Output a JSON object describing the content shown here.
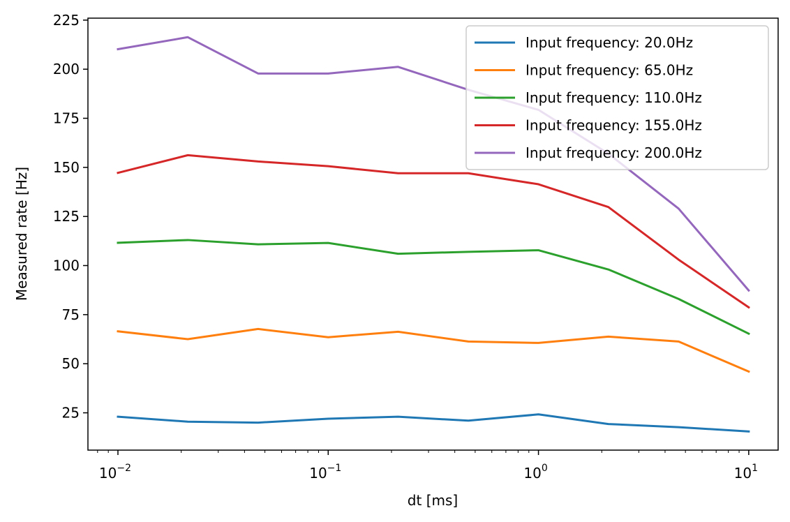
{
  "chart_data": {
    "type": "line",
    "xscale": "log",
    "xlabel": "dt [ms]",
    "ylabel": "Measured rate [Hz]",
    "xlim": [
      0.0072,
      13.8
    ],
    "ylim": [
      6,
      226
    ],
    "grid": false,
    "legend_position": "top-right",
    "x": [
      0.01,
      0.0215,
      0.0464,
      0.1,
      0.215,
      0.464,
      1,
      2.15,
      4.64,
      10
    ],
    "x_ticks": [
      {
        "value": 0.01,
        "base": "10",
        "exp": "−2"
      },
      {
        "value": 0.1,
        "base": "10",
        "exp": "−1"
      },
      {
        "value": 1,
        "base": "10",
        "exp": "0"
      },
      {
        "value": 10,
        "base": "10",
        "exp": "1"
      }
    ],
    "y_ticks": [
      25,
      50,
      75,
      100,
      125,
      150,
      175,
      200,
      225
    ],
    "series": [
      {
        "name": "Input frequency: 20.0Hz",
        "color": "#1f77b4",
        "values": [
          23,
          20.5,
          20,
          22,
          23,
          21,
          24.2,
          19.3,
          17.7,
          15.5
        ]
      },
      {
        "name": "Input frequency: 65.0Hz",
        "color": "#ff7f0e",
        "values": [
          66.5,
          62.5,
          67.7,
          63.5,
          66.3,
          61.3,
          60.6,
          63.8,
          61.3,
          46
        ]
      },
      {
        "name": "Input frequency: 110.0Hz",
        "color": "#2ca02c",
        "values": [
          111.6,
          113,
          110.8,
          111.5,
          106,
          107,
          107.8,
          98,
          83,
          65.3
        ]
      },
      {
        "name": "Input frequency: 155.0Hz",
        "color": "#d62728",
        "values": [
          147.2,
          156.2,
          153,
          150.6,
          147,
          147,
          141.4,
          129.8,
          103,
          78.7
        ]
      },
      {
        "name": "Input frequency: 200.0Hz",
        "color": "#9467bd",
        "values": [
          210.2,
          216.3,
          197.8,
          197.8,
          201.2,
          189.5,
          179.3,
          157,
          129,
          87.3
        ]
      }
    ]
  }
}
